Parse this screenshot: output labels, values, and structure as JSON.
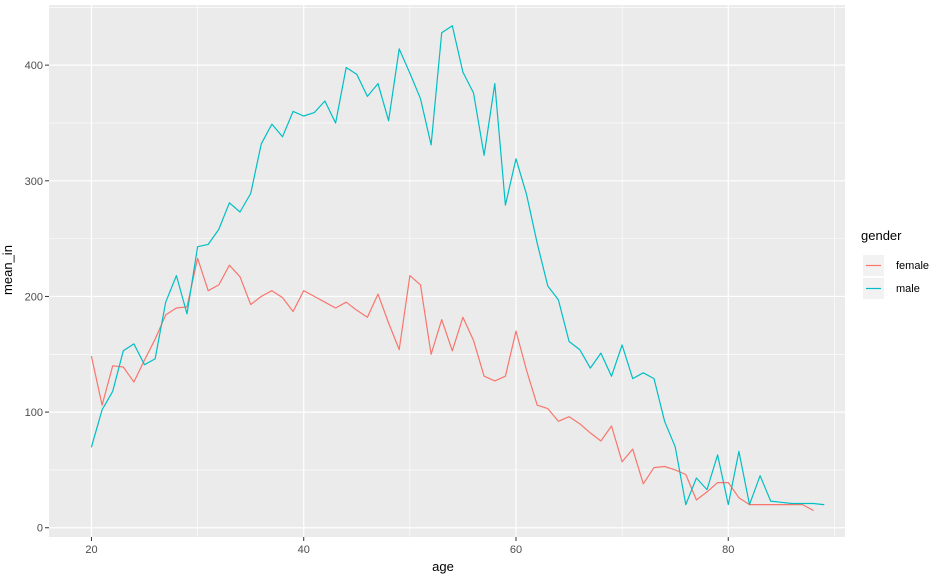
{
  "chart_data": {
    "type": "line",
    "title": "",
    "xlabel": "age",
    "ylabel": "mean_in",
    "xlim": [
      16,
      91
    ],
    "ylim": [
      -8,
      452
    ],
    "x_ticks": [
      20,
      40,
      60,
      80
    ],
    "y_ticks": [
      0,
      100,
      200,
      300,
      400
    ],
    "grid": true,
    "panel_background": "#ebebeb",
    "legend": {
      "title": "gender",
      "placement": "right"
    },
    "series": [
      {
        "name": "female",
        "color": "#f8766d",
        "x": [
          20,
          21,
          22,
          23,
          24,
          25,
          26,
          27,
          28,
          29,
          30,
          31,
          32,
          33,
          34,
          35,
          36,
          37,
          38,
          39,
          40,
          41,
          42,
          43,
          44,
          45,
          46,
          47,
          48,
          49,
          50,
          51,
          52,
          53,
          54,
          55,
          56,
          57,
          58,
          59,
          60,
          61,
          62,
          63,
          64,
          65,
          66,
          67,
          68,
          69,
          70,
          71,
          72,
          73,
          74,
          75,
          76,
          77,
          78,
          79,
          80,
          81,
          82,
          83,
          84,
          85,
          86,
          87,
          88
        ],
        "y": [
          148,
          106,
          140,
          139,
          126,
          145,
          163,
          184,
          190,
          191,
          233,
          205,
          210,
          227,
          217,
          193,
          200,
          205,
          199,
          187,
          205,
          200,
          195,
          190,
          195,
          188,
          182,
          202,
          177,
          154,
          218,
          210,
          150,
          180,
          153,
          182,
          162,
          131,
          127,
          131,
          170,
          136,
          106,
          103,
          92,
          96,
          90,
          82,
          75,
          88,
          57,
          68,
          38,
          52,
          53,
          50,
          46,
          24,
          31,
          39,
          39,
          26,
          20,
          20,
          20,
          20,
          20,
          20,
          15
        ]
      },
      {
        "name": "male",
        "color": "#00bfc4",
        "x": [
          20,
          21,
          22,
          23,
          24,
          25,
          26,
          27,
          28,
          29,
          30,
          31,
          32,
          33,
          34,
          35,
          36,
          37,
          38,
          39,
          40,
          41,
          42,
          43,
          44,
          45,
          46,
          47,
          48,
          49,
          50,
          51,
          52,
          53,
          54,
          55,
          56,
          57,
          58,
          59,
          60,
          61,
          62,
          63,
          64,
          65,
          66,
          67,
          68,
          69,
          70,
          71,
          72,
          73,
          74,
          75,
          76,
          77,
          78,
          79,
          80,
          81,
          82,
          83,
          84,
          85,
          86,
          87,
          88,
          89
        ],
        "y": [
          70,
          102,
          118,
          153,
          159,
          141,
          146,
          195,
          218,
          185,
          243,
          245,
          258,
          281,
          273,
          289,
          332,
          349,
          338,
          360,
          356,
          359,
          369,
          350,
          398,
          392,
          373,
          384,
          352,
          414,
          393,
          371,
          331,
          428,
          434,
          394,
          376,
          322,
          384,
          279,
          319,
          288,
          246,
          209,
          197,
          161,
          154,
          138,
          151,
          131,
          158,
          129,
          134,
          129,
          92,
          70,
          20,
          43,
          33,
          63,
          20,
          66,
          20,
          45,
          23,
          22,
          21,
          21,
          21,
          20
        ]
      }
    ]
  }
}
